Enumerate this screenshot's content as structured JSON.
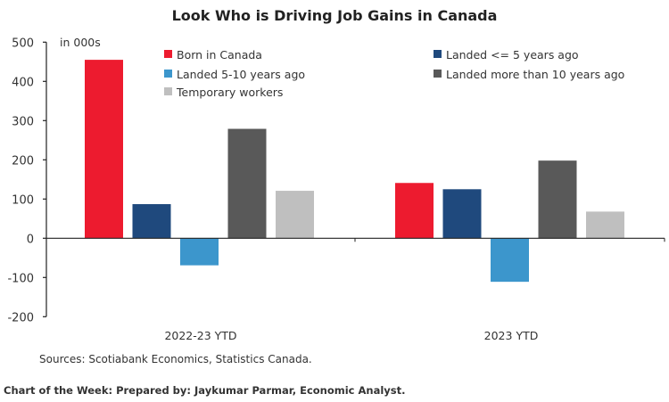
{
  "chart_data": {
    "type": "bar",
    "title": "Look Who is Driving Job Gains in Canada",
    "unit_label": "in 000s",
    "categories": [
      "2022-23 YTD",
      "2023 YTD"
    ],
    "series": [
      {
        "name": "Born in Canada",
        "color": "#ED1B2F",
        "values": [
          455,
          141
        ]
      },
      {
        "name": "Landed <= 5 years ago",
        "color": "#1F497D",
        "values": [
          87,
          125
        ]
      },
      {
        "name": "Landed 5-10 years ago",
        "color": "#3C96CC",
        "values": [
          -69,
          -111
        ]
      },
      {
        "name": "Landed more than 10 years ago",
        "color": "#595959",
        "values": [
          279,
          198
        ]
      },
      {
        "name": "Temporary workers",
        "color": "#BFBFBF",
        "values": [
          121,
          68
        ]
      }
    ],
    "ylim": [
      -200,
      500
    ],
    "yticks": [
      -200,
      -100,
      0,
      100,
      200,
      300,
      400,
      500
    ],
    "grid": false,
    "legend": "top"
  },
  "source": "Sources: Scotiabank Economics, Statistics Canada.",
  "footer": "Chart of the Week: Prepared by: Jaykumar Parmar, Economic Analyst."
}
